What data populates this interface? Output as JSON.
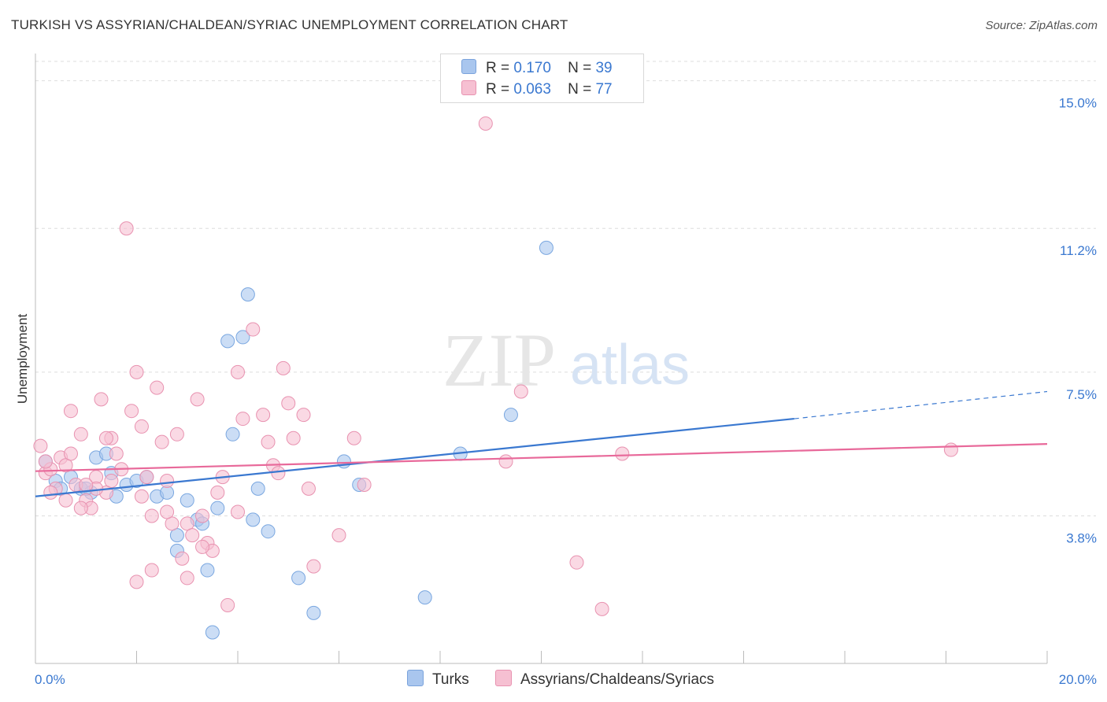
{
  "title": "TURKISH VS ASSYRIAN/CHALDEAN/SYRIAC UNEMPLOYMENT CORRELATION CHART",
  "source": "Source: ZipAtlas.com",
  "watermark": {
    "zip": "ZIP",
    "atlas": "atlas"
  },
  "legend": {
    "r_label": "R =",
    "n_label": "N =",
    "rows": [
      {
        "r": "0.170",
        "n": "39",
        "color": "#a9c6ee",
        "border": "#7aa3dc"
      },
      {
        "r": "0.063",
        "n": "77",
        "color": "#f6c0d2",
        "border": "#e892b0"
      }
    ]
  },
  "chart_data": {
    "type": "scatter",
    "title": "TURKISH VS ASSYRIAN/CHALDEAN/SYRIAC UNEMPLOYMENT CORRELATION CHART",
    "xlabel": "",
    "ylabel": "Unemployment",
    "xlim": [
      0,
      20
    ],
    "ylim": [
      0,
      15.5
    ],
    "x_tick_labels": [
      "0.0%",
      "20.0%"
    ],
    "y_ticks": [
      3.8,
      7.5,
      11.2,
      15.0
    ],
    "y_tick_labels": [
      "3.8%",
      "7.5%",
      "11.2%",
      "15.0%"
    ],
    "grid": "horizontal dashed",
    "legend_position": "top-center",
    "series": [
      {
        "name": "Turks",
        "color": "#7aa7e0",
        "fill": "#a9c6ee",
        "line_color": "#3a78d0",
        "trend": {
          "x0": 0,
          "y0": 4.3,
          "x1": 15.0,
          "y1": 6.3,
          "dash_to_x": 20.0,
          "dash_to_y": 7.0
        },
        "points": [
          [
            0.2,
            5.2
          ],
          [
            0.4,
            4.7
          ],
          [
            0.5,
            4.5
          ],
          [
            0.7,
            4.8
          ],
          [
            0.9,
            4.5
          ],
          [
            1.1,
            4.4
          ],
          [
            1.2,
            5.3
          ],
          [
            1.4,
            5.4
          ],
          [
            1.5,
            4.9
          ],
          [
            1.6,
            4.3
          ],
          [
            1.8,
            4.6
          ],
          [
            2.0,
            4.7
          ],
          [
            2.2,
            4.8
          ],
          [
            2.4,
            4.3
          ],
          [
            2.6,
            4.4
          ],
          [
            2.8,
            2.9
          ],
          [
            3.0,
            4.2
          ],
          [
            3.2,
            3.7
          ],
          [
            3.3,
            3.6
          ],
          [
            3.4,
            2.4
          ],
          [
            3.5,
            0.8
          ],
          [
            3.6,
            4.0
          ],
          [
            3.8,
            8.3
          ],
          [
            3.9,
            5.9
          ],
          [
            4.1,
            8.4
          ],
          [
            4.2,
            9.5
          ],
          [
            4.3,
            3.7
          ],
          [
            4.4,
            4.5
          ],
          [
            4.6,
            3.4
          ],
          [
            5.2,
            2.2
          ],
          [
            5.5,
            1.3
          ],
          [
            6.1,
            5.2
          ],
          [
            6.4,
            4.6
          ],
          [
            7.7,
            1.7
          ],
          [
            8.4,
            5.4
          ],
          [
            9.4,
            6.4
          ],
          [
            10.1,
            10.7
          ],
          [
            2.8,
            3.3
          ],
          [
            1.0,
            4.5
          ]
        ]
      },
      {
        "name": "Assyrians/Chaldeans/Syriacs",
        "color": "#e892b0",
        "fill": "#f6c0d2",
        "line_color": "#e8699a",
        "trend": {
          "x0": 0,
          "y0": 4.95,
          "x1": 20.0,
          "y1": 5.65
        },
        "points": [
          [
            0.1,
            5.6
          ],
          [
            0.2,
            4.9
          ],
          [
            0.3,
            5.0
          ],
          [
            0.4,
            4.5
          ],
          [
            0.5,
            5.3
          ],
          [
            0.6,
            5.1
          ],
          [
            0.7,
            5.4
          ],
          [
            0.8,
            4.6
          ],
          [
            0.9,
            5.9
          ],
          [
            1.0,
            4.2
          ],
          [
            1.1,
            4.0
          ],
          [
            1.2,
            4.8
          ],
          [
            1.3,
            6.8
          ],
          [
            1.4,
            4.4
          ],
          [
            1.5,
            5.8
          ],
          [
            1.6,
            5.4
          ],
          [
            1.7,
            5.0
          ],
          [
            1.8,
            11.2
          ],
          [
            1.9,
            6.5
          ],
          [
            2.0,
            7.5
          ],
          [
            2.1,
            6.1
          ],
          [
            2.2,
            4.8
          ],
          [
            2.3,
            3.8
          ],
          [
            2.4,
            7.1
          ],
          [
            2.5,
            5.7
          ],
          [
            2.6,
            4.7
          ],
          [
            2.7,
            3.6
          ],
          [
            2.8,
            5.9
          ],
          [
            2.9,
            2.7
          ],
          [
            3.0,
            3.6
          ],
          [
            3.1,
            3.3
          ],
          [
            3.2,
            6.8
          ],
          [
            3.3,
            3.8
          ],
          [
            3.4,
            3.1
          ],
          [
            3.5,
            2.9
          ],
          [
            3.6,
            4.4
          ],
          [
            3.7,
            4.8
          ],
          [
            3.8,
            1.5
          ],
          [
            4.0,
            7.5
          ],
          [
            4.1,
            6.3
          ],
          [
            4.3,
            8.6
          ],
          [
            4.5,
            6.4
          ],
          [
            4.6,
            5.7
          ],
          [
            4.7,
            5.1
          ],
          [
            4.8,
            4.9
          ],
          [
            4.9,
            7.6
          ],
          [
            5.0,
            6.7
          ],
          [
            5.1,
            5.8
          ],
          [
            5.3,
            6.4
          ],
          [
            5.4,
            4.5
          ],
          [
            5.5,
            2.5
          ],
          [
            6.0,
            3.3
          ],
          [
            6.3,
            5.8
          ],
          [
            6.5,
            4.6
          ],
          [
            8.9,
            13.9
          ],
          [
            9.3,
            5.2
          ],
          [
            9.6,
            7.0
          ],
          [
            10.7,
            2.6
          ],
          [
            11.2,
            1.4
          ],
          [
            11.6,
            5.4
          ],
          [
            18.1,
            5.5
          ],
          [
            0.3,
            4.4
          ],
          [
            0.6,
            4.2
          ],
          [
            0.9,
            4.0
          ],
          [
            1.2,
            4.5
          ],
          [
            1.5,
            4.7
          ],
          [
            2.0,
            2.1
          ],
          [
            2.3,
            2.4
          ],
          [
            2.6,
            3.9
          ],
          [
            3.0,
            2.2
          ],
          [
            3.3,
            3.0
          ],
          [
            4.0,
            3.9
          ],
          [
            0.2,
            5.2
          ],
          [
            0.7,
            6.5
          ],
          [
            1.0,
            4.6
          ],
          [
            1.4,
            5.8
          ],
          [
            2.1,
            4.3
          ]
        ]
      }
    ]
  }
}
